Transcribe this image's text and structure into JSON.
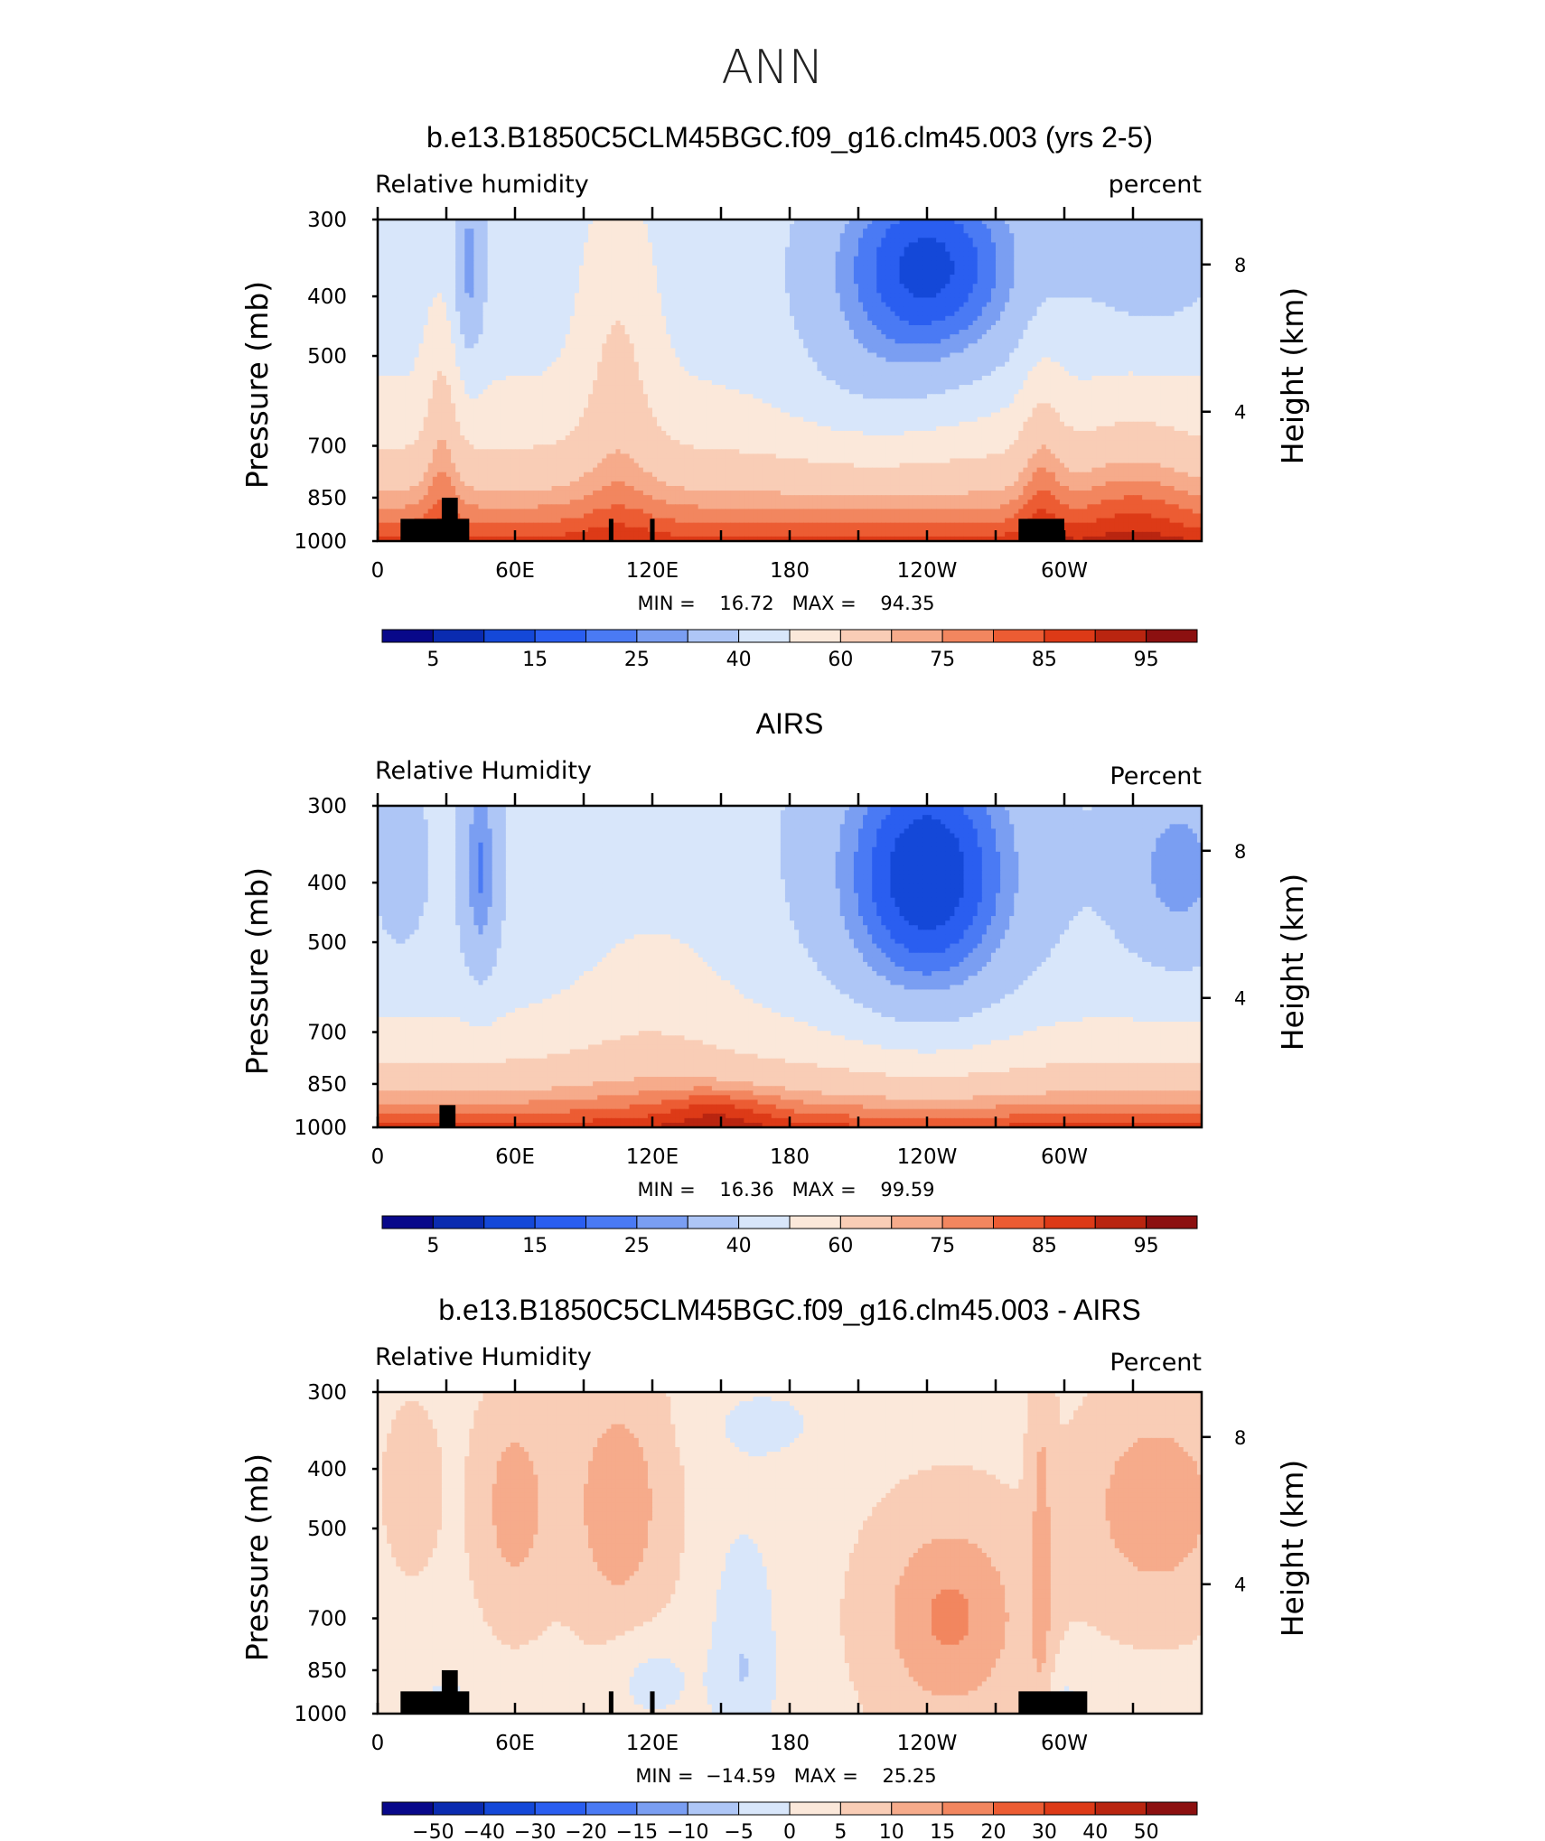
{
  "page": {
    "season": "ANN"
  },
  "colors": {
    "abs_scale": [
      "#08088a",
      "#0a2bb0",
      "#1448d8",
      "#2a5ef0",
      "#4a7af4",
      "#7a9ef2",
      "#aec6f6",
      "#d8e6fa",
      "#fbe8da",
      "#f9cdb6",
      "#f6ab8b",
      "#f2865f",
      "#ec5c33",
      "#dd3a17",
      "#b92510",
      "#8c1010"
    ],
    "diff_scale": [
      "#08088a",
      "#0a2bb0",
      "#1448d8",
      "#2a5ef0",
      "#4a7af4",
      "#7a9ef2",
      "#aec6f6",
      "#d8e6fa",
      "#fbe8da",
      "#f9cdb6",
      "#f6ab8b",
      "#f2865f",
      "#ec5c33",
      "#dd3a17",
      "#b92510",
      "#8c1010"
    ],
    "land_mask": "#000000"
  },
  "panels": [
    {
      "title": "b.e13.B1850C5CLM45BGC.f09_g16.clm45.003 (yrs 2-5)",
      "left_label": "Relative  humidity",
      "right_label": "percent",
      "minmax": "MIN =    16.72   MAX =    94.35",
      "colorbar_labels": [
        "5",
        "15",
        "25",
        "40",
        "60",
        "75",
        "85",
        "95"
      ]
    },
    {
      "title": "AIRS",
      "left_label": "Relative  Humidity",
      "right_label": "Percent",
      "minmax": "MIN =    16.36   MAX =    99.59",
      "colorbar_labels": [
        "5",
        "15",
        "25",
        "40",
        "60",
        "75",
        "85",
        "95"
      ]
    },
    {
      "title": "b.e13.B1850C5CLM45BGC.f09_g16.clm45.003 - AIRS",
      "left_label": "Relative  Humidity",
      "right_label": "Percent",
      "minmax": "MIN =  −14.59   MAX =    25.25",
      "colorbar_labels": [
        "−50",
        "−40",
        "−30",
        "−20",
        "−15",
        "−10",
        "−5",
        "0",
        "5",
        "10",
        "15",
        "20",
        "30",
        "40",
        "50"
      ]
    }
  ],
  "chart_data": [
    {
      "type": "heatmap",
      "title": "b.e13.B1850C5CLM45BGC.f09_g16.clm45.003 (yrs 2-5)",
      "ylabel": "Pressure  (mb)",
      "ylabel_right": "Height  (km)",
      "xticks": [
        "0",
        "60E",
        "120E",
        "180",
        "120W",
        "60W"
      ],
      "yticks": [
        "300",
        "400",
        "500",
        "700",
        "850",
        "1000"
      ],
      "yticks_right": [
        "8",
        "4"
      ],
      "x_range": [
        0,
        360
      ],
      "y_range_mb": [
        1000,
        300
      ],
      "levels": [
        5,
        10,
        15,
        20,
        25,
        30,
        40,
        50,
        60,
        70,
        75,
        80,
        85,
        90,
        95
      ],
      "min": 16.72,
      "max": 94.35
    },
    {
      "type": "heatmap",
      "title": "AIRS",
      "ylabel": "Pressure  (mb)",
      "ylabel_right": "Height  (km)",
      "xticks": [
        "0",
        "60E",
        "120E",
        "180",
        "120W",
        "60W"
      ],
      "yticks": [
        "300",
        "400",
        "500",
        "700",
        "850",
        "1000"
      ],
      "yticks_right": [
        "8",
        "4"
      ],
      "x_range": [
        0,
        360
      ],
      "y_range_mb": [
        1000,
        300
      ],
      "levels": [
        5,
        10,
        15,
        20,
        25,
        30,
        40,
        50,
        60,
        70,
        75,
        80,
        85,
        90,
        95
      ],
      "min": 16.36,
      "max": 99.59
    },
    {
      "type": "heatmap",
      "title": "b.e13.B1850C5CLM45BGC.f09_g16.clm45.003 - AIRS",
      "ylabel": "Pressure  (mb)",
      "ylabel_right": "Height  (km)",
      "xticks": [
        "0",
        "60E",
        "120E",
        "180",
        "120W",
        "60W"
      ],
      "yticks": [
        "300",
        "400",
        "500",
        "700",
        "850",
        "1000"
      ],
      "yticks_right": [
        "8",
        "4"
      ],
      "x_range": [
        0,
        360
      ],
      "y_range_mb": [
        1000,
        300
      ],
      "levels": [
        -50,
        -40,
        -30,
        -20,
        -15,
        -10,
        -5,
        0,
        5,
        10,
        15,
        20,
        30,
        40,
        50
      ],
      "min": -14.59,
      "max": 25.25
    }
  ]
}
